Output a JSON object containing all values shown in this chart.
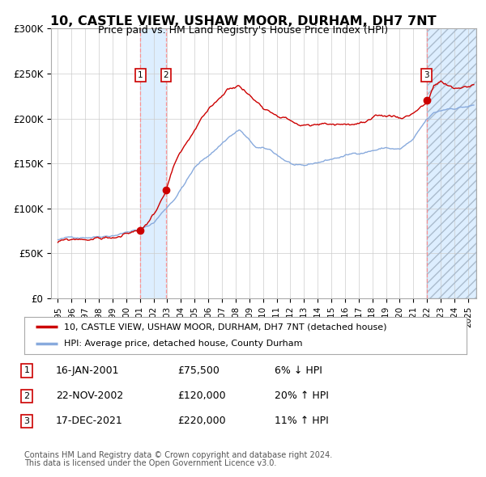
{
  "title": "10, CASTLE VIEW, USHAW MOOR, DURHAM, DH7 7NT",
  "subtitle": "Price paid vs. HM Land Registry's House Price Index (HPI)",
  "ylim": [
    0,
    300000
  ],
  "yticks": [
    0,
    50000,
    100000,
    150000,
    200000,
    250000,
    300000
  ],
  "ytick_labels": [
    "£0",
    "£50K",
    "£100K",
    "£150K",
    "£200K",
    "£250K",
    "£300K"
  ],
  "property_color": "#cc0000",
  "hpi_color": "#88aadd",
  "sale_marker_color": "#cc0000",
  "dashed_line_color": "#ff8888",
  "shade_color": "#ddeeff",
  "grid_color": "#cccccc",
  "background_color": "#ffffff",
  "sale1_year": 2001.04,
  "sale2_year": 2002.9,
  "sale3_year": 2021.96,
  "sale1_price": 75500,
  "sale2_price": 120000,
  "sale3_price": 220000,
  "legend_property": "10, CASTLE VIEW, USHAW MOOR, DURHAM, DH7 7NT (detached house)",
  "legend_hpi": "HPI: Average price, detached house, County Durham",
  "table_entries": [
    {
      "num": "1",
      "date": "16-JAN-2001",
      "price": "£75,500",
      "change": "6% ↓ HPI"
    },
    {
      "num": "2",
      "date": "22-NOV-2002",
      "price": "£120,000",
      "change": "20% ↑ HPI"
    },
    {
      "num": "3",
      "date": "17-DEC-2021",
      "price": "£220,000",
      "change": "11% ↑ HPI"
    }
  ],
  "footer1": "Contains HM Land Registry data © Crown copyright and database right 2024.",
  "footer2": "This data is licensed under the Open Government Licence v3.0."
}
